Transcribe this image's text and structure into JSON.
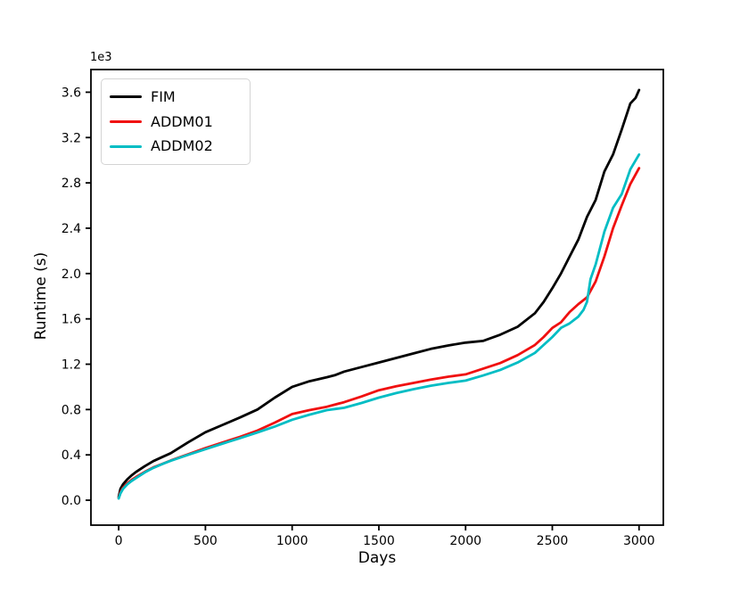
{
  "figure": {
    "background": "#ffffff"
  },
  "chart_data": {
    "type": "line",
    "title": "",
    "xlabel": "Days",
    "ylabel": "Runtime (s)",
    "y_offset_label": "1e3",
    "grid": false,
    "legend_position": "upper-left",
    "xlim": [
      -160,
      3140
    ],
    "ylim": [
      -220,
      3800
    ],
    "xticks": [
      0,
      500,
      1000,
      1500,
      2000,
      2500,
      3000
    ],
    "xtick_labels": [
      "0",
      "500",
      "1000",
      "1500",
      "2000",
      "2500",
      "3000"
    ],
    "yticks": [
      0,
      400,
      800,
      1200,
      1600,
      2000,
      2400,
      2800,
      3200,
      3600
    ],
    "ytick_labels": [
      "0.0",
      "0.4",
      "0.8",
      "1.2",
      "1.6",
      "2.0",
      "2.4",
      "2.8",
      "3.2",
      "3.6"
    ],
    "axis_color": "#000000",
    "series": [
      {
        "name": "FIM",
        "color": "#000000",
        "points": [
          [
            0,
            30
          ],
          [
            10,
            100
          ],
          [
            25,
            140
          ],
          [
            50,
            185
          ],
          [
            75,
            220
          ],
          [
            100,
            250
          ],
          [
            150,
            300
          ],
          [
            200,
            345
          ],
          [
            250,
            380
          ],
          [
            300,
            415
          ],
          [
            400,
            510
          ],
          [
            500,
            600
          ],
          [
            600,
            665
          ],
          [
            700,
            730
          ],
          [
            800,
            800
          ],
          [
            900,
            905
          ],
          [
            1000,
            1000
          ],
          [
            1100,
            1050
          ],
          [
            1200,
            1085
          ],
          [
            1250,
            1105
          ],
          [
            1300,
            1135
          ],
          [
            1400,
            1175
          ],
          [
            1500,
            1215
          ],
          [
            1600,
            1255
          ],
          [
            1700,
            1295
          ],
          [
            1800,
            1335
          ],
          [
            1900,
            1365
          ],
          [
            2000,
            1390
          ],
          [
            2100,
            1405
          ],
          [
            2200,
            1460
          ],
          [
            2300,
            1530
          ],
          [
            2400,
            1650
          ],
          [
            2450,
            1750
          ],
          [
            2500,
            1870
          ],
          [
            2550,
            2000
          ],
          [
            2600,
            2150
          ],
          [
            2650,
            2300
          ],
          [
            2700,
            2500
          ],
          [
            2750,
            2650
          ],
          [
            2800,
            2900
          ],
          [
            2850,
            3050
          ],
          [
            2900,
            3270
          ],
          [
            2950,
            3500
          ],
          [
            2980,
            3550
          ],
          [
            3000,
            3620
          ]
        ]
      },
      {
        "name": "ADDM01",
        "color": "#f01010",
        "points": [
          [
            0,
            20
          ],
          [
            10,
            70
          ],
          [
            25,
            110
          ],
          [
            50,
            150
          ],
          [
            75,
            180
          ],
          [
            100,
            205
          ],
          [
            150,
            250
          ],
          [
            200,
            290
          ],
          [
            250,
            320
          ],
          [
            300,
            350
          ],
          [
            400,
            405
          ],
          [
            500,
            460
          ],
          [
            600,
            510
          ],
          [
            700,
            560
          ],
          [
            800,
            615
          ],
          [
            900,
            685
          ],
          [
            1000,
            760
          ],
          [
            1100,
            795
          ],
          [
            1200,
            825
          ],
          [
            1250,
            845
          ],
          [
            1300,
            865
          ],
          [
            1400,
            915
          ],
          [
            1500,
            970
          ],
          [
            1600,
            1005
          ],
          [
            1700,
            1035
          ],
          [
            1800,
            1065
          ],
          [
            1900,
            1090
          ],
          [
            2000,
            1110
          ],
          [
            2100,
            1160
          ],
          [
            2200,
            1210
          ],
          [
            2300,
            1280
          ],
          [
            2400,
            1370
          ],
          [
            2450,
            1440
          ],
          [
            2500,
            1520
          ],
          [
            2550,
            1570
          ],
          [
            2600,
            1660
          ],
          [
            2650,
            1730
          ],
          [
            2700,
            1790
          ],
          [
            2750,
            1930
          ],
          [
            2800,
            2150
          ],
          [
            2850,
            2400
          ],
          [
            2900,
            2600
          ],
          [
            2950,
            2790
          ],
          [
            3000,
            2930
          ]
        ]
      },
      {
        "name": "ADDM02",
        "color": "#00bdc4",
        "points": [
          [
            0,
            15
          ],
          [
            10,
            60
          ],
          [
            25,
            100
          ],
          [
            50,
            140
          ],
          [
            75,
            170
          ],
          [
            100,
            195
          ],
          [
            150,
            245
          ],
          [
            200,
            285
          ],
          [
            250,
            318
          ],
          [
            300,
            348
          ],
          [
            400,
            400
          ],
          [
            500,
            450
          ],
          [
            600,
            500
          ],
          [
            700,
            548
          ],
          [
            800,
            598
          ],
          [
            900,
            650
          ],
          [
            1000,
            710
          ],
          [
            1100,
            755
          ],
          [
            1200,
            795
          ],
          [
            1250,
            805
          ],
          [
            1300,
            815
          ],
          [
            1400,
            858
          ],
          [
            1500,
            905
          ],
          [
            1600,
            945
          ],
          [
            1700,
            980
          ],
          [
            1800,
            1010
          ],
          [
            1900,
            1035
          ],
          [
            2000,
            1055
          ],
          [
            2100,
            1100
          ],
          [
            2200,
            1150
          ],
          [
            2300,
            1215
          ],
          [
            2400,
            1300
          ],
          [
            2450,
            1370
          ],
          [
            2500,
            1440
          ],
          [
            2550,
            1520
          ],
          [
            2600,
            1560
          ],
          [
            2650,
            1620
          ],
          [
            2680,
            1680
          ],
          [
            2700,
            1750
          ],
          [
            2720,
            1950
          ],
          [
            2750,
            2080
          ],
          [
            2800,
            2370
          ],
          [
            2850,
            2580
          ],
          [
            2900,
            2700
          ],
          [
            2950,
            2920
          ],
          [
            3000,
            3050
          ]
        ]
      }
    ]
  }
}
